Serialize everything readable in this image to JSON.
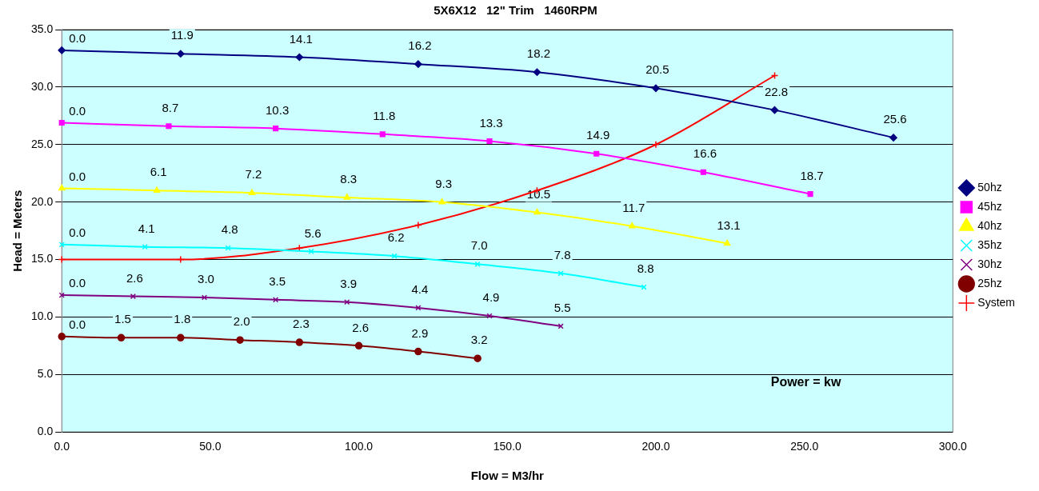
{
  "chart_data": {
    "type": "line",
    "title": "5X6X12   12\" Trim   1460RPM",
    "xlabel": "Flow = M3/hr",
    "ylabel": "Head = Meters",
    "annotations": [
      "Power = kw",
      {
        "text": "0.0",
        "x": 0,
        "y": 33.2
      },
      {
        "text": "11.9",
        "x": 40,
        "y": 32.9
      },
      {
        "text": "14.1",
        "x": 80,
        "y": 32.6
      },
      {
        "text": "16.2",
        "x": 120,
        "y": 32.0
      },
      {
        "text": "18.2",
        "x": 160,
        "y": 31.3
      },
      {
        "text": "20.5",
        "x": 200,
        "y": 29.9
      },
      {
        "text": "22.8",
        "x": 240,
        "y": 28.0
      },
      {
        "text": "25.6",
        "x": 280,
        "y": 25.6
      },
      {
        "text": "0.0",
        "x": 0,
        "y": 26.9
      },
      {
        "text": "8.7",
        "x": 36,
        "y": 26.6
      },
      {
        "text": "10.3",
        "x": 72,
        "y": 26.4
      },
      {
        "text": "11.8",
        "x": 108,
        "y": 25.9
      },
      {
        "text": "13.3",
        "x": 144,
        "y": 25.3
      },
      {
        "text": "14.9",
        "x": 180,
        "y": 24.2
      },
      {
        "text": "16.6",
        "x": 216,
        "y": 22.6
      },
      {
        "text": "18.7",
        "x": 252,
        "y": 20.7
      },
      {
        "text": "0.0",
        "x": 0,
        "y": 21.2
      },
      {
        "text": "6.1",
        "x": 32,
        "y": 21.0
      },
      {
        "text": "7.2",
        "x": 64,
        "y": 20.8
      },
      {
        "text": "8.3",
        "x": 96,
        "y": 20.4
      },
      {
        "text": "9.3",
        "x": 128,
        "y": 20.0
      },
      {
        "text": "10.5",
        "x": 160,
        "y": 19.1
      },
      {
        "text": "11.7",
        "x": 192,
        "y": 17.9
      },
      {
        "text": "13.1",
        "x": 224,
        "y": 16.4
      },
      {
        "text": "0.0",
        "x": 0,
        "y": 16.3
      },
      {
        "text": "4.1",
        "x": 28,
        "y": 16.1
      },
      {
        "text": "4.8",
        "x": 56,
        "y": 16.0
      },
      {
        "text": "5.6",
        "x": 84,
        "y": 15.7
      },
      {
        "text": "6.2",
        "x": 112,
        "y": 15.3
      },
      {
        "text": "7.0",
        "x": 140,
        "y": 14.6
      },
      {
        "text": "7.8",
        "x": 168,
        "y": 13.8
      },
      {
        "text": "8.8",
        "x": 196,
        "y": 12.6
      },
      {
        "text": "0.0",
        "x": 0,
        "y": 11.9
      },
      {
        "text": "2.6",
        "x": 24,
        "y": 11.8
      },
      {
        "text": "3.0",
        "x": 48,
        "y": 11.7
      },
      {
        "text": "3.5",
        "x": 72,
        "y": 11.5
      },
      {
        "text": "3.9",
        "x": 96,
        "y": 11.3
      },
      {
        "text": "4.4",
        "x": 120,
        "y": 10.8
      },
      {
        "text": "4.9",
        "x": 144,
        "y": 10.1
      },
      {
        "text": "5.5",
        "x": 168,
        "y": 9.2
      },
      {
        "text": "0.0",
        "x": 0,
        "y": 8.3
      },
      {
        "text": "1.5",
        "x": 20,
        "y": 8.2
      },
      {
        "text": "1.8",
        "x": 40,
        "y": 8.2
      },
      {
        "text": "2.0",
        "x": 60,
        "y": 8.0
      },
      {
        "text": "2.3",
        "x": 80,
        "y": 7.8
      },
      {
        "text": "2.6",
        "x": 100,
        "y": 7.5
      },
      {
        "text": "2.9",
        "x": 120,
        "y": 7.0
      },
      {
        "text": "3.2",
        "x": 140,
        "y": 6.4
      }
    ],
    "xlim": [
      0,
      300
    ],
    "xticks": [
      {
        "value": 0,
        "label": "0.0"
      },
      {
        "value": 50,
        "label": "50.0"
      },
      {
        "value": 100,
        "label": "100.0"
      },
      {
        "value": 150,
        "label": "150.0"
      },
      {
        "value": 200,
        "label": "200.0"
      },
      {
        "value": 250,
        "label": "250.0"
      },
      {
        "value": 300,
        "label": "300.0"
      }
    ],
    "ylim": [
      0,
      35
    ],
    "yticks": [
      {
        "value": 0,
        "label": "0.0"
      },
      {
        "value": 5,
        "label": "5.0"
      },
      {
        "value": 10,
        "label": "10.0"
      },
      {
        "value": 15,
        "label": "15.0"
      },
      {
        "value": 20,
        "label": "20.0"
      },
      {
        "value": 25,
        "label": "25.0"
      },
      {
        "value": 30,
        "label": "30.0"
      },
      {
        "value": 35,
        "label": "35.0"
      }
    ],
    "grid": "y",
    "legend": "right",
    "series": [
      {
        "name": "50hz",
        "color": "#000080",
        "marker": "diamond",
        "x": [
          0,
          40,
          80,
          120,
          160,
          200,
          240,
          280
        ],
        "values": [
          33.2,
          32.9,
          32.6,
          32.0,
          31.3,
          29.9,
          28.0,
          25.6
        ]
      },
      {
        "name": "45hz",
        "color": "#ff00ff",
        "marker": "square",
        "x": [
          0,
          36,
          72,
          108,
          144,
          180,
          216,
          252
        ],
        "values": [
          26.9,
          26.6,
          26.4,
          25.9,
          25.3,
          24.2,
          22.6,
          20.7
        ]
      },
      {
        "name": "40hz",
        "color": "#ffff00",
        "marker": "triangle",
        "x": [
          0,
          32,
          64,
          96,
          128,
          160,
          192,
          224
        ],
        "values": [
          21.2,
          21.0,
          20.8,
          20.4,
          20.0,
          19.1,
          17.9,
          16.4
        ]
      },
      {
        "name": "35hz",
        "color": "#00ffff",
        "marker": "cross",
        "x": [
          0,
          28,
          56,
          84,
          112,
          140,
          168,
          196
        ],
        "values": [
          16.3,
          16.1,
          16.0,
          15.7,
          15.3,
          14.6,
          13.8,
          12.6
        ]
      },
      {
        "name": "30hz",
        "color": "#800080",
        "marker": "cross",
        "x": [
          0,
          24,
          48,
          72,
          96,
          120,
          144,
          168
        ],
        "values": [
          11.9,
          11.8,
          11.7,
          11.5,
          11.3,
          10.8,
          10.1,
          9.2
        ]
      },
      {
        "name": "25hz",
        "color": "#800000",
        "marker": "circle",
        "x": [
          0,
          20,
          40,
          60,
          80,
          100,
          120,
          140
        ],
        "values": [
          8.3,
          8.2,
          8.2,
          8.0,
          7.8,
          7.5,
          7.0,
          6.4
        ]
      },
      {
        "name": "System",
        "color": "#ff0000",
        "marker": "plus",
        "x": [
          0,
          40,
          80,
          120,
          160,
          200,
          240
        ],
        "values": [
          15,
          15,
          16,
          18,
          21,
          25,
          31
        ]
      }
    ]
  }
}
